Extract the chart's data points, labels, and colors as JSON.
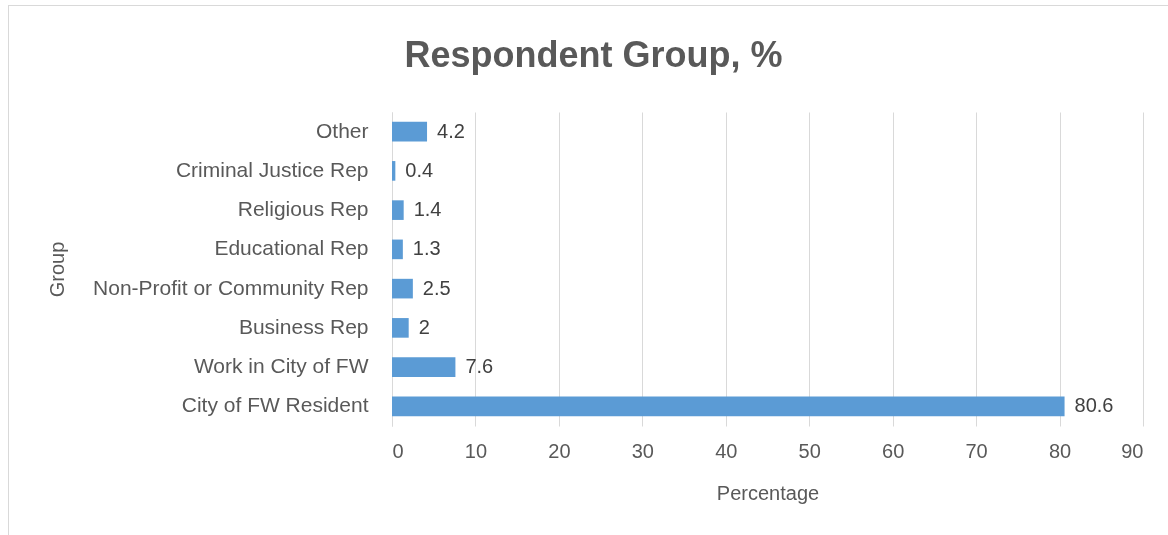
{
  "chart_data": {
    "type": "bar",
    "orientation": "horizontal",
    "title": "Respondent Group, %",
    "xlabel": "Percentage",
    "ylabel": "Group",
    "categories": [
      "Other",
      "Criminal Justice Rep",
      "Religious Rep",
      "Educational Rep",
      "Non-Profit or Community Rep",
      "Business Rep",
      "Work in City of FW",
      "City of FW Resident"
    ],
    "values": [
      4.2,
      0.4,
      1.4,
      1.3,
      2.5,
      2,
      7.6,
      80.6
    ],
    "color": "#5b9bd5",
    "xlim": [
      0,
      90
    ],
    "xticks": [
      0,
      10,
      20,
      30,
      40,
      50,
      60,
      70,
      80,
      90
    ],
    "grid": "x",
    "data_labels": true
  }
}
